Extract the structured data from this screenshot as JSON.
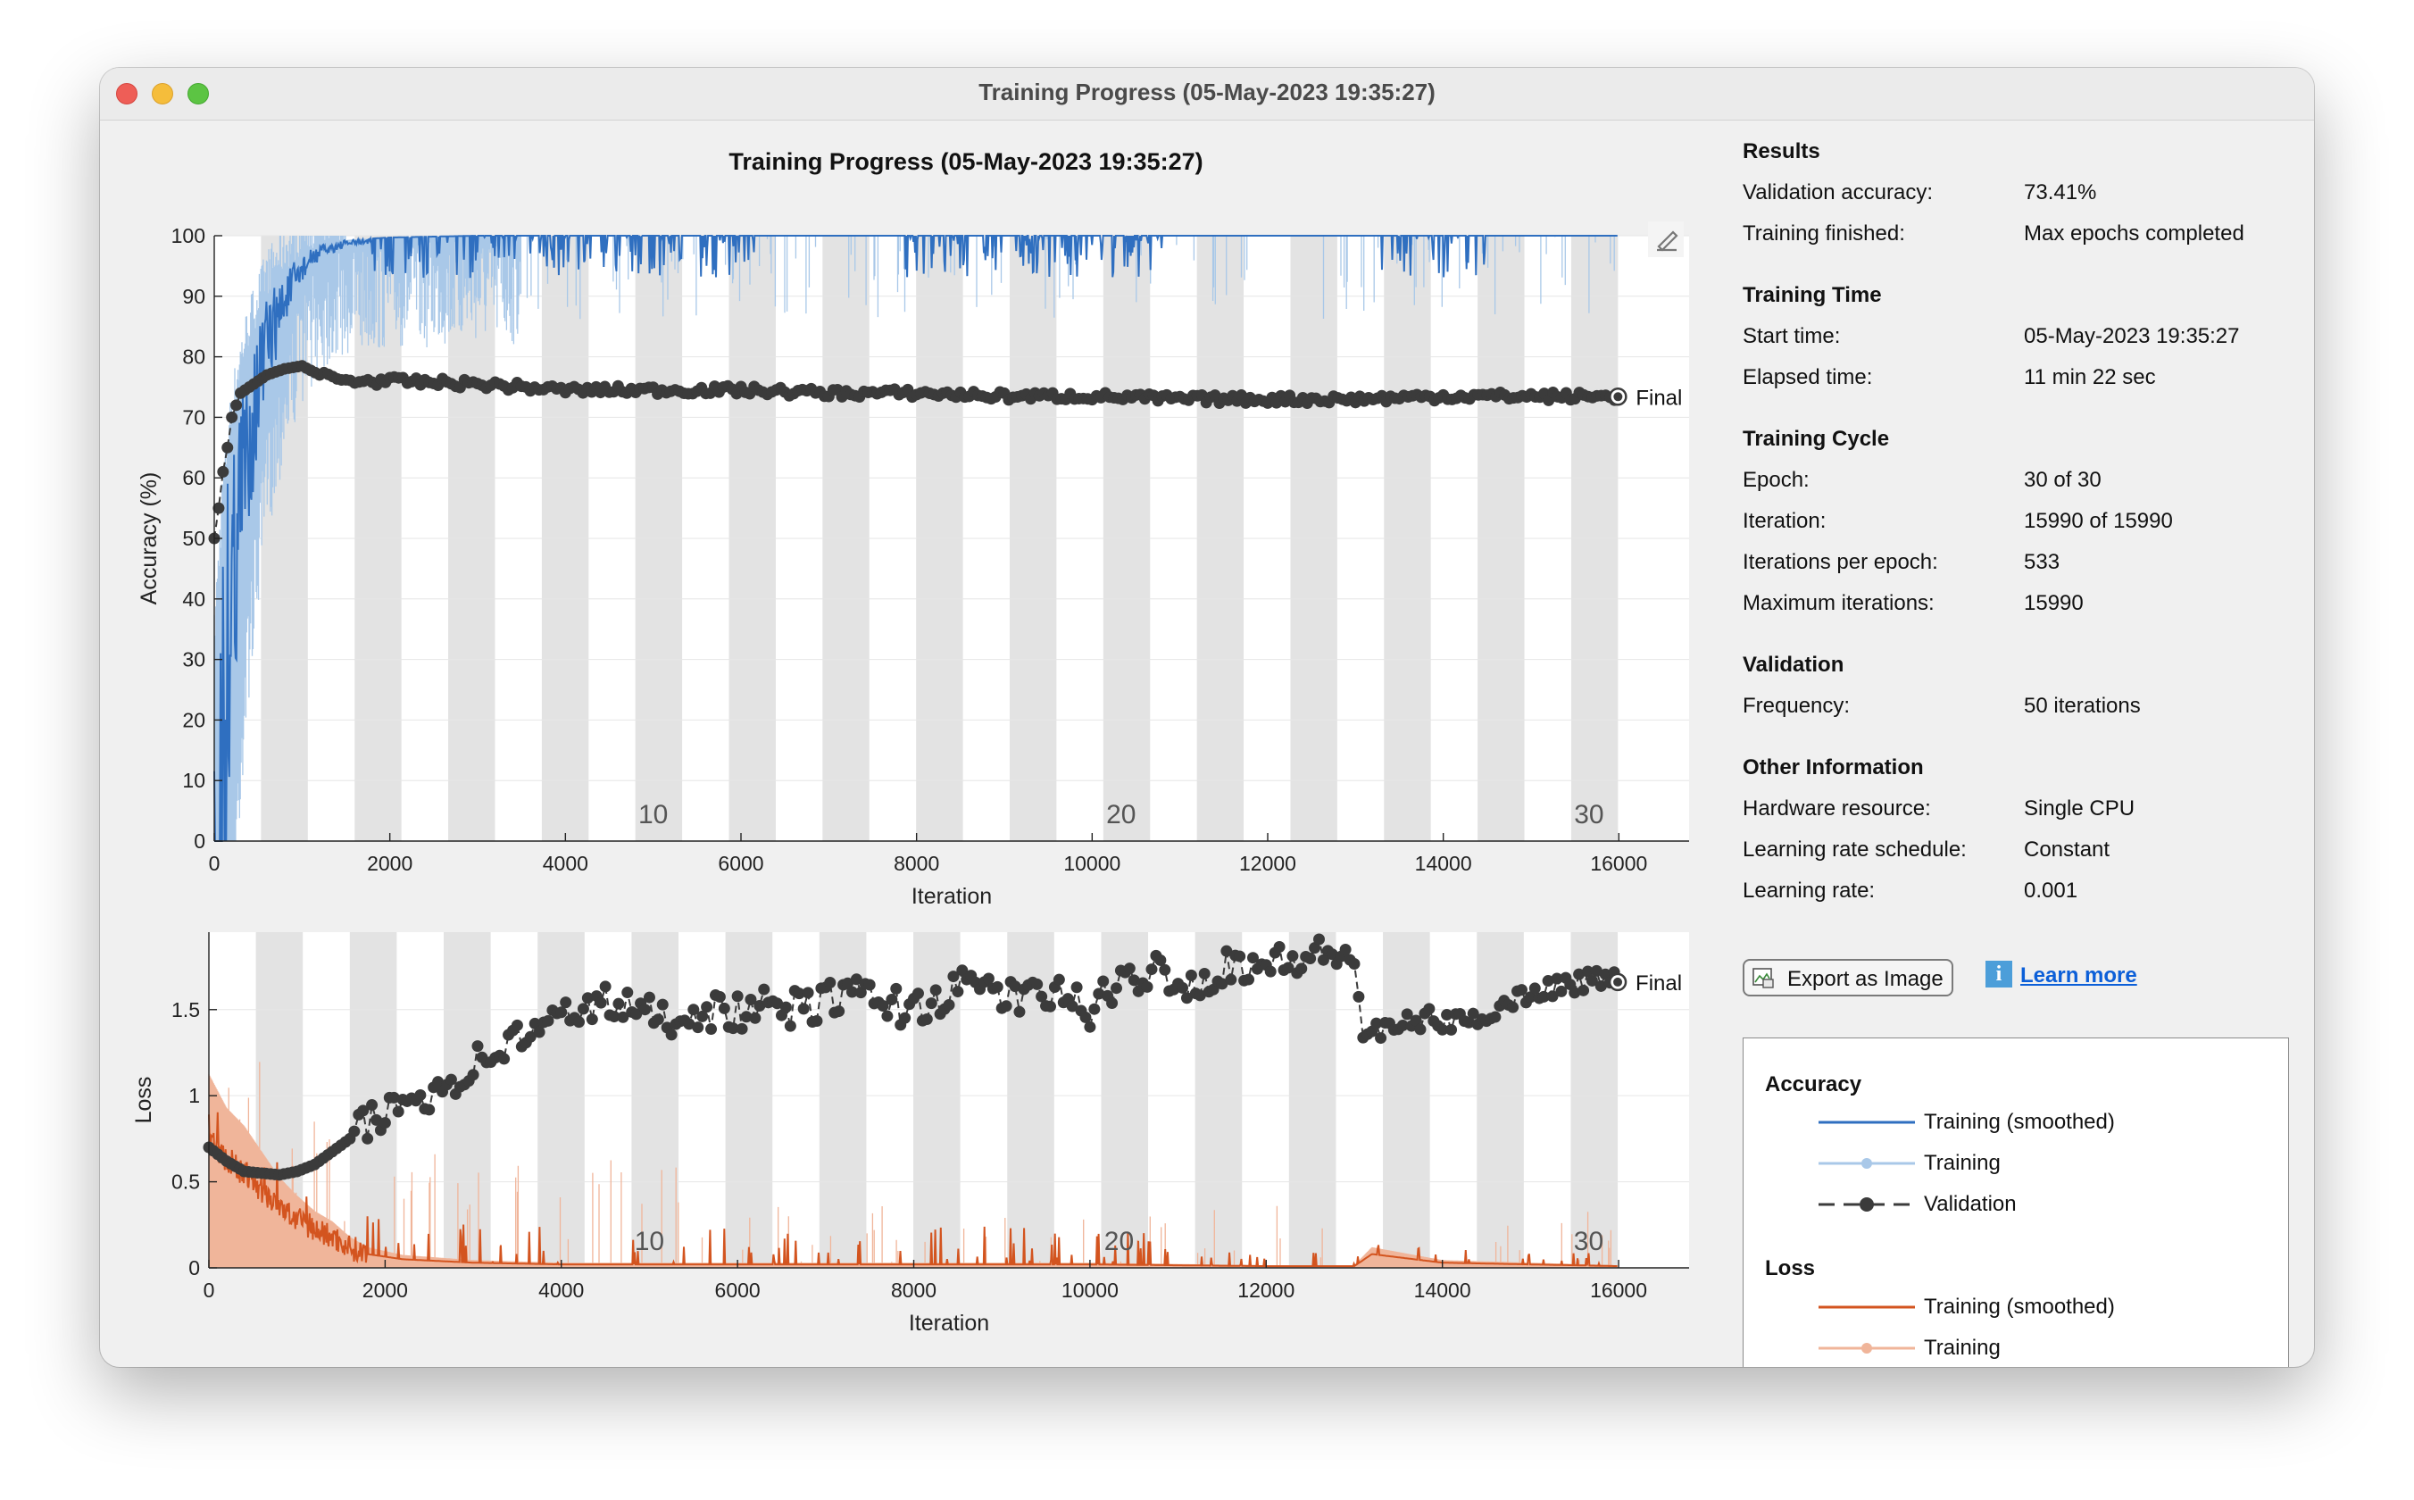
{
  "window": {
    "title": "Training Progress (05-May-2023 19:35:27)"
  },
  "plot_title": "Training Progress (05-May-2023 19:35:27)",
  "colors": {
    "accuracy_smoothed": "#2f6fc0",
    "accuracy_training": "#a9c8e8",
    "loss_smoothed": "#d3541f",
    "loss_training": "#f0b59a",
    "validation": "#3b3b3b",
    "epoch_shade": "#e3e3e3",
    "link": "#0c5fd8"
  },
  "chart_data": [
    {
      "type": "line",
      "name": "accuracy",
      "xlabel": "Iteration",
      "ylabel": "Accuracy (%)",
      "xlim": [
        0,
        16800
      ],
      "ylim": [
        0,
        100
      ],
      "x_ticks": [
        0,
        2000,
        4000,
        6000,
        8000,
        10000,
        12000,
        14000,
        16000
      ],
      "y_ticks": [
        0,
        10,
        20,
        30,
        40,
        50,
        60,
        70,
        80,
        90,
        100
      ],
      "epoch_labels": [
        {
          "epoch": "10",
          "x": 5000
        },
        {
          "epoch": "20",
          "x": 10330
        },
        {
          "epoch": "30",
          "x": 15660
        }
      ],
      "final_label": "Final",
      "series": [
        {
          "name": "Training (smoothed)",
          "x": [
            0,
            100,
            200,
            300,
            400,
            500,
            600,
            800,
            1000,
            1200,
            1500,
            2000,
            3000,
            16000
          ],
          "values": [
            30,
            55,
            68,
            76,
            82,
            86,
            90,
            94,
            97,
            98.5,
            99.3,
            99.7,
            100,
            100
          ]
        },
        {
          "name": "Validation",
          "x": [
            0,
            50,
            100,
            150,
            200,
            250,
            300,
            400,
            500,
            600,
            700,
            800,
            1000,
            1200,
            1500,
            2000,
            3000,
            4000,
            5000,
            6000,
            7000,
            8000,
            9000,
            10000,
            11000,
            12000,
            13000,
            14000,
            15000,
            16000
          ],
          "values": [
            50,
            55,
            61,
            65,
            70,
            72,
            74,
            75,
            76,
            77,
            77.5,
            78,
            78.5,
            77,
            76,
            76,
            75.5,
            74.5,
            74.5,
            74.5,
            74,
            74,
            73.5,
            73.5,
            73,
            73,
            73,
            73.5,
            73.5,
            73.41
          ]
        }
      ]
    },
    {
      "type": "line",
      "name": "loss",
      "xlabel": "Iteration",
      "ylabel": "Loss",
      "xlim": [
        0,
        16800
      ],
      "ylim": [
        0,
        1.95
      ],
      "x_ticks": [
        0,
        2000,
        4000,
        6000,
        8000,
        10000,
        12000,
        14000,
        16000
      ],
      "y_ticks": [
        0,
        0.5,
        1,
        1.5
      ],
      "y_tick_labels": [
        "0",
        "0.5",
        "1",
        "1.5"
      ],
      "epoch_labels": [
        {
          "epoch": "10",
          "x": 5000
        },
        {
          "epoch": "20",
          "x": 10330
        },
        {
          "epoch": "30",
          "x": 15660
        }
      ],
      "final_label": "Final",
      "series": [
        {
          "name": "Training (smoothed)",
          "x": [
            0,
            200,
            400,
            600,
            800,
            1000,
            1200,
            1400,
            1600,
            1800,
            2200,
            3000,
            4000,
            6000,
            8000,
            10000,
            12000,
            13000,
            13200,
            14000,
            16000
          ],
          "values": [
            0.75,
            0.62,
            0.55,
            0.45,
            0.35,
            0.28,
            0.22,
            0.18,
            0.12,
            0.08,
            0.05,
            0.03,
            0.02,
            0.02,
            0.02,
            0.02,
            0.01,
            0.01,
            0.08,
            0.03,
            0.01
          ]
        },
        {
          "name": "Validation",
          "x": [
            0,
            200,
            400,
            600,
            800,
            1000,
            1200,
            1600,
            2000,
            2400,
            2800,
            3200,
            3600,
            4000,
            4400,
            4800,
            5200,
            5600,
            6000,
            6400,
            6800,
            7200,
            7600,
            8000,
            8400,
            8800,
            9200,
            9600,
            10000,
            10400,
            10800,
            11200,
            11600,
            12000,
            12400,
            12800,
            13000,
            13100,
            13400,
            13800,
            14200,
            14600,
            15000,
            15400,
            15800,
            16000
          ],
          "values": [
            0.7,
            0.62,
            0.56,
            0.55,
            0.54,
            0.56,
            0.6,
            0.75,
            0.9,
            1.0,
            1.1,
            1.25,
            1.35,
            1.45,
            1.55,
            1.5,
            1.45,
            1.5,
            1.48,
            1.52,
            1.5,
            1.6,
            1.55,
            1.5,
            1.6,
            1.65,
            1.55,
            1.6,
            1.5,
            1.65,
            1.75,
            1.62,
            1.78,
            1.75,
            1.8,
            1.82,
            1.8,
            1.35,
            1.38,
            1.45,
            1.42,
            1.5,
            1.6,
            1.65,
            1.68,
            1.66
          ]
        }
      ]
    }
  ],
  "results": {
    "header": "Results",
    "rows": [
      {
        "label": "Validation accuracy:",
        "value": "73.41%"
      },
      {
        "label": "Training finished:",
        "value": "Max epochs completed"
      }
    ]
  },
  "training_time": {
    "header": "Training Time",
    "rows": [
      {
        "label": "Start time:",
        "value": "05-May-2023 19:35:27"
      },
      {
        "label": "Elapsed time:",
        "value": "11 min 22 sec"
      }
    ]
  },
  "training_cycle": {
    "header": "Training Cycle",
    "rows": [
      {
        "label": "Epoch:",
        "value": "30 of 30"
      },
      {
        "label": "Iteration:",
        "value": "15990 of 15990"
      },
      {
        "label": "Iterations per epoch:",
        "value": "533"
      },
      {
        "label": "Maximum iterations:",
        "value": "15990"
      }
    ]
  },
  "validation": {
    "header": "Validation",
    "rows": [
      {
        "label": "Frequency:",
        "value": "50 iterations"
      }
    ]
  },
  "other_info": {
    "header": "Other Information",
    "rows": [
      {
        "label": "Hardware resource:",
        "value": "Single CPU"
      },
      {
        "label": "Learning rate schedule:",
        "value": "Constant"
      },
      {
        "label": "Learning rate:",
        "value": "0.001"
      }
    ]
  },
  "buttons": {
    "export_label": "Export as Image",
    "learn_more": "Learn more"
  },
  "legend": {
    "accuracy_header": "Accuracy",
    "loss_header": "Loss",
    "accuracy_items": [
      "Training (smoothed)",
      "Training",
      "Validation"
    ],
    "loss_items": [
      "Training (smoothed)",
      "Training"
    ]
  }
}
